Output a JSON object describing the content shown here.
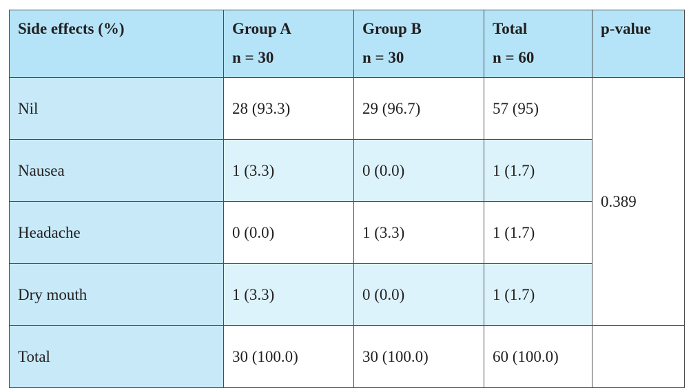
{
  "table": {
    "headers": [
      {
        "line1": "Side effects (%)",
        "line2": ""
      },
      {
        "line1": "Group A",
        "line2": "n = 30"
      },
      {
        "line1": "Group B",
        "line2": "n = 30"
      },
      {
        "line1": "Total",
        "line2": "n = 60"
      },
      {
        "line1": "p-value",
        "line2": ""
      }
    ],
    "rows": [
      {
        "label": "Nil",
        "group_a": "28 (93.3)",
        "group_b": "29 (96.7)",
        "total": "57 (95)"
      },
      {
        "label": "Nausea",
        "group_a": "1 (3.3)",
        "group_b": "0 (0.0)",
        "total": "1 (1.7)"
      },
      {
        "label": "Headache",
        "group_a": "0 (0.0)",
        "group_b": "1 (3.3)",
        "total": "1 (1.7)"
      },
      {
        "label": "Dry mouth",
        "group_a": "1 (3.3)",
        "group_b": "0 (0.0)",
        "total": "1 (1.7)"
      },
      {
        "label": "Total",
        "group_a": "30 (100.0)",
        "group_b": "30 (100.0)",
        "total": "60 (100.0)"
      }
    ],
    "p_value": "0.389"
  },
  "colors": {
    "header_bg": "#b5e4f8",
    "row_label_bg": "#c7e9f8",
    "alt_row_bg": "#ddf3fc",
    "border": "#4a4a4a",
    "text": "#231f20"
  }
}
